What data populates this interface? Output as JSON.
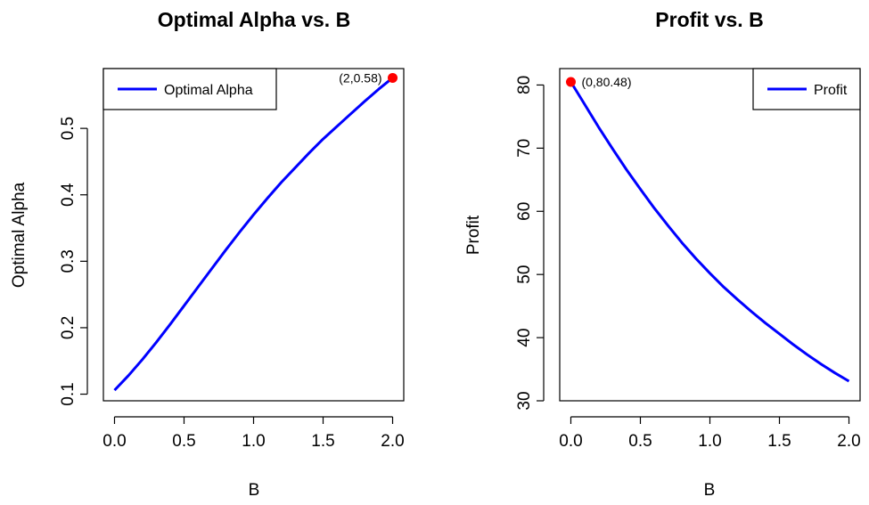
{
  "chart_data": [
    {
      "type": "line",
      "title": "Optimal Alpha vs. B",
      "xlabel": "B",
      "ylabel": "Optimal Alpha",
      "xlim": [
        -0.08,
        2.08
      ],
      "ylim": [
        0.09,
        0.59
      ],
      "x_ticks": [
        "0.0",
        "0.5",
        "1.0",
        "1.5",
        "2.0"
      ],
      "y_ticks": [
        "0.1",
        "0.2",
        "0.3",
        "0.4",
        "0.5"
      ],
      "grid": false,
      "legend_position": "top-left",
      "series": [
        {
          "name": "Optimal Alpha",
          "color": "#0000ff",
          "x": [
            0,
            0.1,
            0.2,
            0.3,
            0.4,
            0.5,
            0.6,
            0.7,
            0.8,
            0.9,
            1.0,
            1.1,
            1.2,
            1.3,
            1.4,
            1.5,
            1.6,
            1.7,
            1.8,
            1.9,
            2.0
          ],
          "y": [
            0.106,
            0.128,
            0.152,
            0.178,
            0.205,
            0.233,
            0.261,
            0.289,
            0.317,
            0.344,
            0.37,
            0.395,
            0.419,
            0.441,
            0.463,
            0.484,
            0.503,
            0.522,
            0.541,
            0.559,
            0.576
          ]
        }
      ],
      "highlight_point": {
        "x": 2,
        "y": 0.576,
        "label": "(2,0.58)",
        "color": "#ff0000"
      }
    },
    {
      "type": "line",
      "title": "Profit vs. B",
      "xlabel": "B",
      "ylabel": "Profit",
      "xlim": [
        -0.08,
        2.08
      ],
      "ylim": [
        30,
        82.6
      ],
      "x_ticks": [
        "0.0",
        "0.5",
        "1.0",
        "1.5",
        "2.0"
      ],
      "y_ticks": [
        "30",
        "40",
        "50",
        "60",
        "70",
        "80"
      ],
      "grid": false,
      "legend_position": "top-right",
      "series": [
        {
          "name": "Profit",
          "color": "#0000ff",
          "x": [
            0,
            0.1,
            0.2,
            0.3,
            0.4,
            0.5,
            0.6,
            0.7,
            0.8,
            0.9,
            1.0,
            1.1,
            1.2,
            1.3,
            1.4,
            1.5,
            1.6,
            1.7,
            1.8,
            1.9,
            2.0
          ],
          "y": [
            80.48,
            76.9,
            73.3,
            69.9,
            66.6,
            63.5,
            60.5,
            57.7,
            55.0,
            52.5,
            50.2,
            48.0,
            46.0,
            44.1,
            42.3,
            40.6,
            38.9,
            37.3,
            35.8,
            34.4,
            33.1
          ]
        }
      ],
      "highlight_point": {
        "x": 0,
        "y": 80.48,
        "label": "(0,80.48)",
        "color": "#ff0000"
      }
    }
  ]
}
